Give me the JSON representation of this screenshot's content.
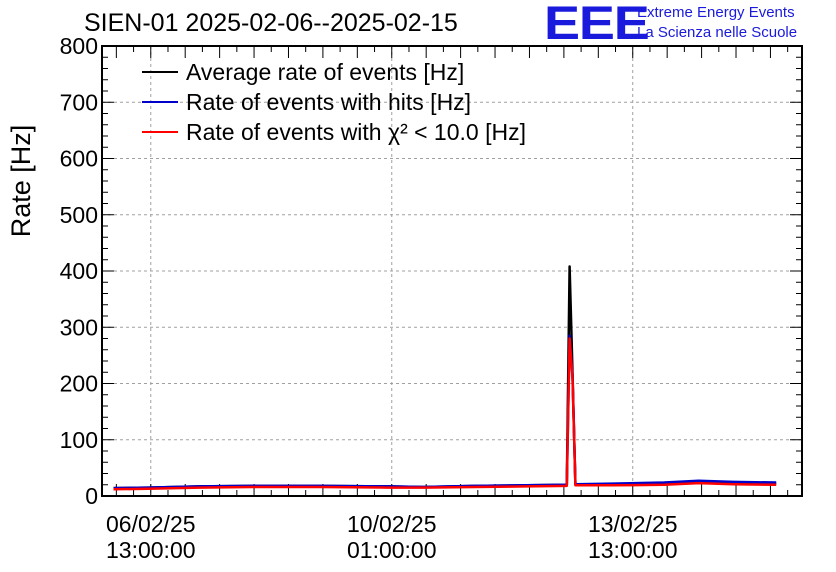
{
  "header": {
    "title": "SIEN-01 2025-02-06--2025-02-15",
    "logo": "EEE",
    "logo_line1": "Extreme Energy Events",
    "logo_line2": "La Scienza nelle Scuole"
  },
  "chart_data": {
    "type": "line",
    "title": "SIEN-01 2025-02-06--2025-02-15",
    "ylabel": "Rate [Hz]",
    "xlabel": "",
    "ylim": [
      0,
      800
    ],
    "yticks": [
      0,
      100,
      200,
      300,
      400,
      500,
      600,
      700,
      800
    ],
    "xlim": [
      "2025-02-05T20:00:00",
      "2025-02-16T00:00:00"
    ],
    "xtick_labels": [
      {
        "date": "06/02/25",
        "time": "13:00:00",
        "t": "2025-02-06T13:00:00"
      },
      {
        "date": "10/02/25",
        "time": "01:00:00",
        "t": "2025-02-10T01:00:00"
      },
      {
        "date": "13/02/25",
        "time": "13:00:00",
        "t": "2025-02-13T13:00:00"
      }
    ],
    "grid": true,
    "legend": "top-left",
    "series": [
      {
        "name": "Average rate of events [Hz]",
        "color": "#000000",
        "x": [
          "2025-02-06T00:00:00",
          "2025-02-06T12:00:00",
          "2025-02-07T06:00:00",
          "2025-02-08T00:00:00",
          "2025-02-09T00:00:00",
          "2025-02-10T00:00:00",
          "2025-02-10T12:00:00",
          "2025-02-11T06:00:00",
          "2025-02-12T00:00:00",
          "2025-02-12T14:00:00",
          "2025-02-12T15:00:00",
          "2025-02-12T16:00:00",
          "2025-02-12T17:00:00",
          "2025-02-13T06:00:00",
          "2025-02-14T00:00:00",
          "2025-02-14T12:00:00",
          "2025-02-15T00:00:00",
          "2025-02-15T15:00:00"
        ],
        "values": [
          14,
          15,
          17,
          18,
          18,
          17,
          16,
          18,
          19,
          20,
          408,
          220,
          21,
          21,
          22,
          25,
          23,
          22
        ]
      },
      {
        "name": "Rate of events with hits [Hz]",
        "color": "#0000cc",
        "x": [
          "2025-02-06T00:00:00",
          "2025-02-06T12:00:00",
          "2025-02-07T06:00:00",
          "2025-02-08T00:00:00",
          "2025-02-09T00:00:00",
          "2025-02-10T00:00:00",
          "2025-02-10T12:00:00",
          "2025-02-11T06:00:00",
          "2025-02-12T00:00:00",
          "2025-02-12T14:00:00",
          "2025-02-12T15:00:00",
          "2025-02-12T16:00:00",
          "2025-02-12T17:00:00",
          "2025-02-13T06:00:00",
          "2025-02-14T00:00:00",
          "2025-02-14T12:00:00",
          "2025-02-15T00:00:00",
          "2025-02-15T15:00:00"
        ],
        "values": [
          14,
          15,
          17,
          18,
          18,
          17,
          16,
          18,
          19,
          20,
          285,
          215,
          21,
          22,
          24,
          27,
          25,
          24
        ]
      },
      {
        "name": "Rate of events with χ² < 10.0 [Hz]",
        "color": "#ff0000",
        "x": [
          "2025-02-06T00:00:00",
          "2025-02-06T12:00:00",
          "2025-02-07T06:00:00",
          "2025-02-08T00:00:00",
          "2025-02-09T00:00:00",
          "2025-02-10T00:00:00",
          "2025-02-10T12:00:00",
          "2025-02-11T06:00:00",
          "2025-02-12T00:00:00",
          "2025-02-12T14:00:00",
          "2025-02-12T15:00:00",
          "2025-02-12T16:00:00",
          "2025-02-12T17:00:00",
          "2025-02-13T06:00:00",
          "2025-02-14T00:00:00",
          "2025-02-14T12:00:00",
          "2025-02-15T00:00:00",
          "2025-02-15T15:00:00"
        ],
        "values": [
          12,
          13,
          15,
          16,
          16,
          15,
          15,
          16,
          17,
          18,
          280,
          210,
          19,
          19,
          20,
          23,
          21,
          20
        ]
      }
    ]
  }
}
